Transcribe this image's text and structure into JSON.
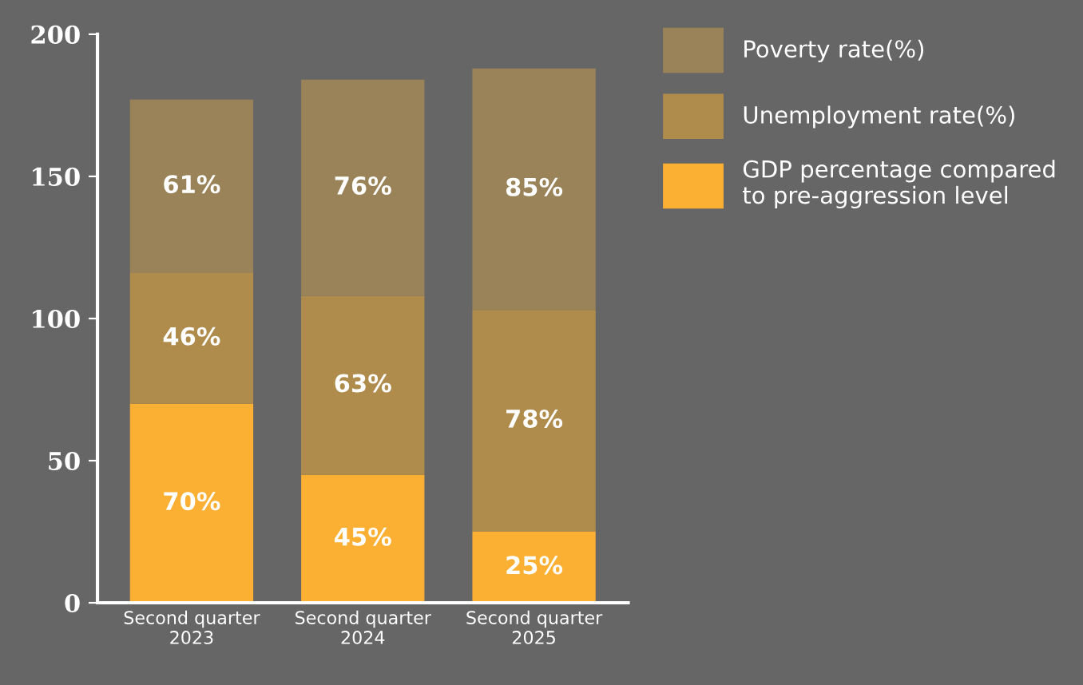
{
  "chart_data": {
    "type": "bar",
    "stacked": true,
    "categories": [
      "Second quarter\n2023",
      "Second quarter\n2024",
      "Second quarter\n2025"
    ],
    "series": [
      {
        "name": "GDP percentage compared\nto pre-aggression level",
        "color": "#fbb034",
        "values": [
          70,
          45,
          25
        ],
        "value_labels": [
          "70%",
          "45%",
          "25%"
        ]
      },
      {
        "name": "Unemployment rate(%)",
        "color": "#b08c4c",
        "values": [
          46,
          63,
          78
        ],
        "value_labels": [
          "46%",
          "63%",
          "78%"
        ]
      },
      {
        "name": "Poverty rate(%)",
        "color": "#9a8358",
        "values": [
          61,
          76,
          85
        ],
        "value_labels": [
          "61%",
          "76%",
          "85%"
        ]
      }
    ],
    "ylim": [
      0,
      200
    ],
    "yticks": [
      0,
      50,
      100,
      150,
      200
    ],
    "grid": false,
    "legend": "top right"
  }
}
